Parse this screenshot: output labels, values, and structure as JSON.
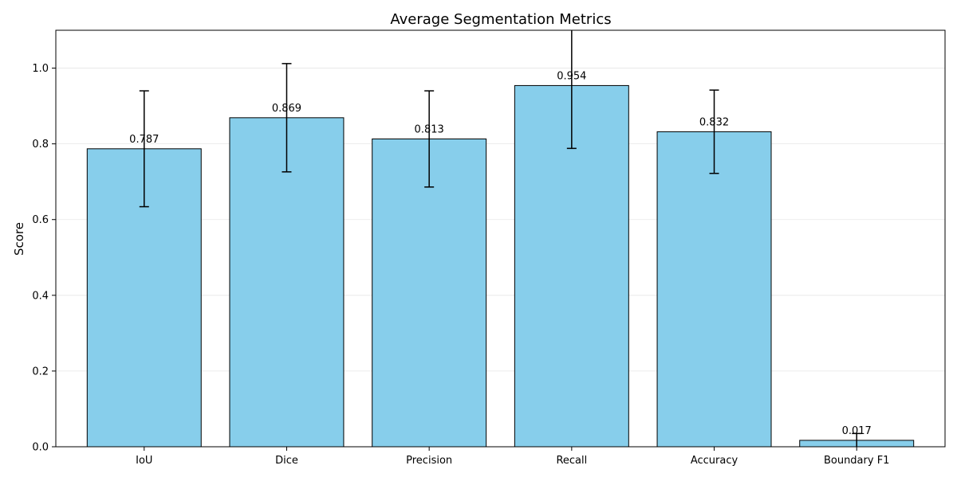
{
  "chart_data": {
    "type": "bar",
    "title": "Average Segmentation Metrics",
    "xlabel": "",
    "ylabel": "Score",
    "categories": [
      "IoU",
      "Dice",
      "Precision",
      "Recall",
      "Accuracy",
      "Boundary F1"
    ],
    "values": [
      0.787,
      0.869,
      0.813,
      0.954,
      0.832,
      0.017
    ],
    "value_labels": [
      "0.787",
      "0.869",
      "0.813",
      "0.954",
      "0.832",
      "0.017"
    ],
    "errors": [
      0.153,
      0.143,
      0.127,
      0.166,
      0.11,
      0.018
    ],
    "ylim": [
      0,
      1.1
    ],
    "yticks": [
      0.0,
      0.2,
      0.4,
      0.6,
      0.8,
      1.0
    ],
    "ytick_labels": [
      "0.0",
      "0.2",
      "0.4",
      "0.6",
      "0.8",
      "1.0"
    ],
    "grid": "horizontal",
    "bar_color": "#87CEEB",
    "edge_color": "#000000"
  }
}
